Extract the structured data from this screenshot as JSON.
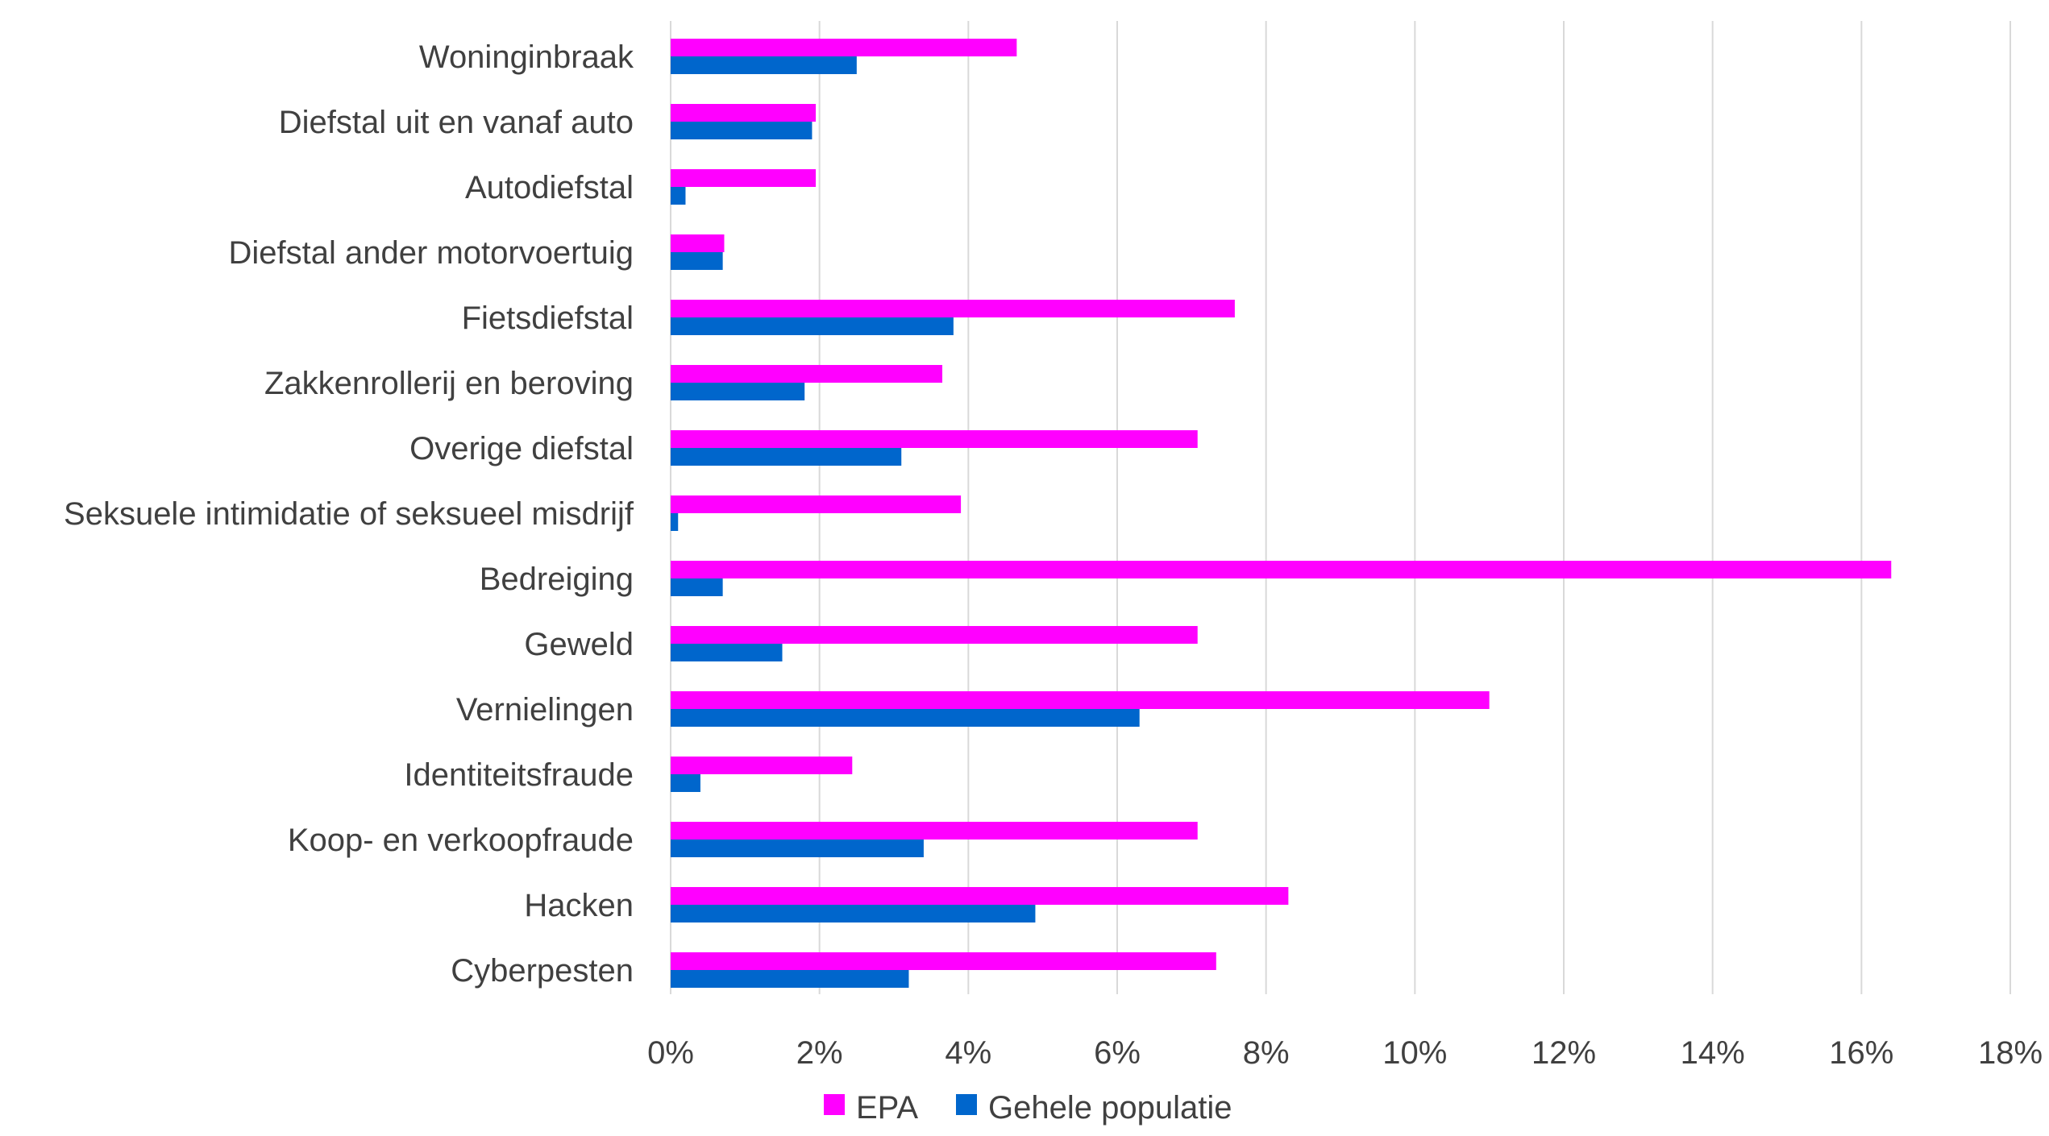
{
  "chart_data": {
    "type": "bar",
    "orientation": "horizontal",
    "categories": [
      "Woninginbraak",
      "Diefstal uit en vanaf auto",
      "Autodiefstal",
      "Diefstal ander motorvoertuig",
      "Fietsdiefstal",
      "Zakkenrollerij en beroving",
      "Overige diefstal",
      "Seksuele intimidatie of seksueel misdrijf",
      "Bedreiging",
      "Geweld",
      "Vernielingen",
      "Identiteitsfraude",
      "Koop- en verkoopfraude",
      "Hacken",
      "Cyberpesten"
    ],
    "series": [
      {
        "name": "EPA",
        "color": "#ff00ff",
        "values": [
          4.65,
          1.95,
          1.95,
          0.72,
          7.58,
          3.65,
          7.08,
          3.9,
          16.4,
          7.08,
          11.0,
          2.44,
          7.08,
          8.3,
          7.33
        ]
      },
      {
        "name": "Gehele populatie",
        "color": "#0066cc",
        "values": [
          2.5,
          1.9,
          0.2,
          0.7,
          3.8,
          1.8,
          3.1,
          0.1,
          0.7,
          1.5,
          6.3,
          0.4,
          3.4,
          4.9,
          3.2
        ]
      }
    ],
    "xlim": [
      0,
      18
    ],
    "xticks": [
      "0%",
      "2%",
      "4%",
      "6%",
      "8%",
      "10%",
      "12%",
      "14%",
      "16%",
      "18%"
    ],
    "title": "",
    "xlabel": "",
    "ylabel": "",
    "grid": "vertical",
    "legend_position": "bottom"
  }
}
